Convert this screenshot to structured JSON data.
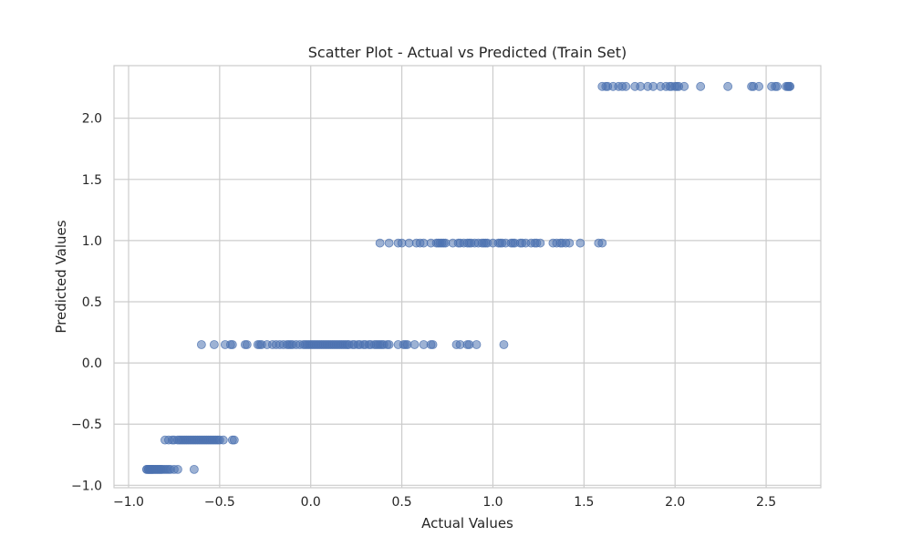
{
  "chart_data": {
    "type": "scatter",
    "title": "Scatter Plot - Actual vs Predicted (Train Set)",
    "xlabel": "Actual Values",
    "ylabel": "Predicted Values",
    "xlim": [
      -1.08,
      2.8
    ],
    "ylim": [
      -1.02,
      2.43
    ],
    "xticks": [
      -1.0,
      -0.5,
      0.0,
      0.5,
      1.0,
      1.5,
      2.0,
      2.5
    ],
    "xtick_labels": [
      "−1.0",
      "−0.5",
      "0.0",
      "0.5",
      "1.0",
      "1.5",
      "2.0",
      "2.5"
    ],
    "yticks": [
      -1.0,
      -0.5,
      0.0,
      0.5,
      1.0,
      1.5,
      2.0
    ],
    "ytick_labels": [
      "−1.0",
      "−0.5",
      "0.0",
      "0.5",
      "1.0",
      "1.5",
      "2.0"
    ],
    "grid": true,
    "marker_color": "#4c72b0",
    "marker_alpha": 0.55,
    "groups": [
      {
        "y": -0.87,
        "x": [
          -0.9,
          -0.9,
          -0.89,
          -0.89,
          -0.89,
          -0.88,
          -0.88,
          -0.88,
          -0.87,
          -0.87,
          -0.87,
          -0.86,
          -0.86,
          -0.85,
          -0.85,
          -0.84,
          -0.84,
          -0.83,
          -0.83,
          -0.82,
          -0.82,
          -0.81,
          -0.8,
          -0.79,
          -0.78,
          -0.77,
          -0.75,
          -0.73,
          -0.64
        ]
      },
      {
        "y": -0.63,
        "x": [
          -0.8,
          -0.78,
          -0.76,
          -0.75,
          -0.73,
          -0.72,
          -0.71,
          -0.7,
          -0.69,
          -0.68,
          -0.67,
          -0.66,
          -0.65,
          -0.64,
          -0.63,
          -0.62,
          -0.61,
          -0.6,
          -0.59,
          -0.58,
          -0.57,
          -0.56,
          -0.55,
          -0.54,
          -0.53,
          -0.52,
          -0.51,
          -0.5,
          -0.48,
          -0.43,
          -0.42
        ]
      },
      {
        "y": 0.15,
        "x": [
          -0.6,
          -0.53,
          -0.47,
          -0.44,
          -0.43,
          -0.36,
          -0.35,
          -0.29,
          -0.28,
          -0.27,
          -0.24,
          -0.21,
          -0.19,
          -0.17,
          -0.15,
          -0.13,
          -0.12,
          -0.11,
          -0.1,
          -0.08,
          -0.06,
          -0.04,
          -0.03,
          -0.02,
          -0.01,
          0.0,
          0.01,
          0.02,
          0.03,
          0.04,
          0.05,
          0.06,
          0.07,
          0.08,
          0.09,
          0.1,
          0.11,
          0.12,
          0.13,
          0.14,
          0.15,
          0.16,
          0.17,
          0.18,
          0.19,
          0.2,
          0.21,
          0.23,
          0.24,
          0.26,
          0.27,
          0.29,
          0.3,
          0.32,
          0.33,
          0.35,
          0.36,
          0.37,
          0.38,
          0.39,
          0.4,
          0.42,
          0.43,
          0.48,
          0.51,
          0.52,
          0.53,
          0.57,
          0.62,
          0.66,
          0.67,
          0.8,
          0.82,
          0.86,
          0.87,
          0.91,
          1.06
        ]
      },
      {
        "y": 0.98,
        "x": [
          0.38,
          0.43,
          0.48,
          0.5,
          0.54,
          0.58,
          0.6,
          0.62,
          0.66,
          0.69,
          0.7,
          0.71,
          0.72,
          0.73,
          0.74,
          0.78,
          0.81,
          0.82,
          0.84,
          0.86,
          0.87,
          0.88,
          0.9,
          0.92,
          0.94,
          0.95,
          0.96,
          0.97,
          1.0,
          1.03,
          1.04,
          1.05,
          1.07,
          1.1,
          1.11,
          1.12,
          1.15,
          1.16,
          1.18,
          1.21,
          1.23,
          1.24,
          1.26,
          1.33,
          1.35,
          1.37,
          1.38,
          1.4,
          1.42,
          1.48,
          1.58,
          1.6
        ]
      },
      {
        "y": 2.26,
        "x": [
          1.6,
          1.62,
          1.63,
          1.66,
          1.69,
          1.71,
          1.73,
          1.78,
          1.81,
          1.85,
          1.88,
          1.92,
          1.95,
          1.97,
          1.98,
          2.0,
          2.01,
          2.02,
          2.05,
          2.14,
          2.29,
          2.42,
          2.43,
          2.46,
          2.53,
          2.55,
          2.56,
          2.61,
          2.62,
          2.62,
          2.63,
          2.63
        ]
      }
    ]
  }
}
